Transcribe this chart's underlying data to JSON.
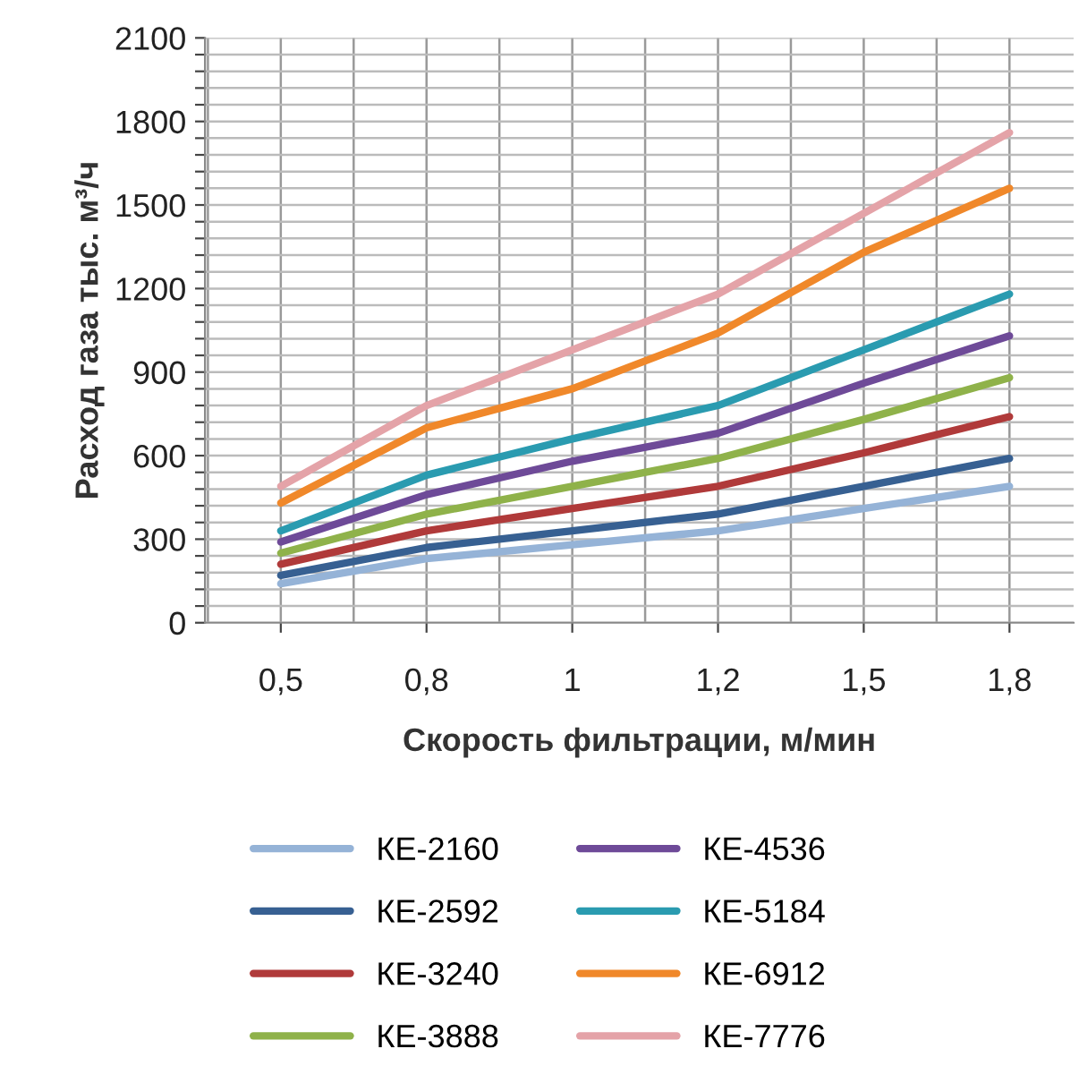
{
  "chart_data": {
    "type": "line",
    "xlabel": "Скорость фильтрации, м/мин",
    "ylabel": "Расход газа тыс. м³/ч",
    "categories": [
      "0,5",
      "0,8",
      "1",
      "1,2",
      "1,5",
      "1,8"
    ],
    "ylim": [
      0,
      2100
    ],
    "yticks": [
      0,
      {
        "value": 60,
        "label": null
      },
      {
        "value": 120,
        "label": null
      },
      {
        "value": 180,
        "label": null
      },
      {
        "value": 240,
        "label": null
      },
      300,
      {
        "value": 360,
        "label": null
      },
      {
        "value": 420,
        "label": null
      },
      {
        "value": 480,
        "label": null
      },
      {
        "value": 540,
        "label": null
      },
      600,
      {
        "value": 660,
        "label": null
      },
      {
        "value": 720,
        "label": null
      },
      {
        "value": 780,
        "label": null
      },
      {
        "value": 840,
        "label": null
      },
      900,
      {
        "value": 960,
        "label": null
      },
      {
        "value": 1020,
        "label": null
      },
      {
        "value": 1080,
        "label": null
      },
      {
        "value": 1140,
        "label": null
      },
      1200,
      {
        "value": 1260,
        "label": null
      },
      {
        "value": 1320,
        "label": null
      },
      {
        "value": 1380,
        "label": null
      },
      {
        "value": 1440,
        "label": null
      },
      1500,
      {
        "value": 1560,
        "label": null
      },
      {
        "value": 1620,
        "label": null
      },
      {
        "value": 1680,
        "label": null
      },
      {
        "value": 1740,
        "label": null
      },
      1800,
      {
        "value": 1860,
        "label": null
      },
      {
        "value": 1920,
        "label": null
      },
      {
        "value": 1980,
        "label": null
      },
      {
        "value": 2040,
        "label": null
      },
      2100
    ],
    "grid": true,
    "legend": "bottom",
    "marker": "none",
    "line_style": "solid",
    "series": [
      {
        "name": "КЕ-2160",
        "color": "#95b3d7",
        "values": [
          140,
          230,
          280,
          330,
          410,
          490
        ]
      },
      {
        "name": "КЕ-2592",
        "color": "#376092",
        "values": [
          170,
          270,
          330,
          390,
          490,
          590
        ]
      },
      {
        "name": "КЕ-3240",
        "color": "#b03a3a",
        "values": [
          210,
          330,
          410,
          490,
          610,
          740
        ]
      },
      {
        "name": "КЕ-3888",
        "color": "#8fb24a",
        "values": [
          250,
          390,
          490,
          590,
          730,
          880
        ]
      },
      {
        "name": "КЕ-4536",
        "color": "#6e4a98",
        "values": [
          290,
          460,
          580,
          680,
          860,
          1030
        ]
      },
      {
        "name": "КЕ-5184",
        "color": "#2a9bb0",
        "values": [
          330,
          530,
          660,
          780,
          980,
          1180
        ]
      },
      {
        "name": "КЕ-6912",
        "color": "#f0882a",
        "values": [
          430,
          700,
          840,
          1040,
          1330,
          1560
        ]
      },
      {
        "name": "КЕ-7776",
        "color": "#e4a3a8",
        "values": [
          490,
          780,
          980,
          1180,
          1470,
          1760
        ]
      }
    ]
  }
}
